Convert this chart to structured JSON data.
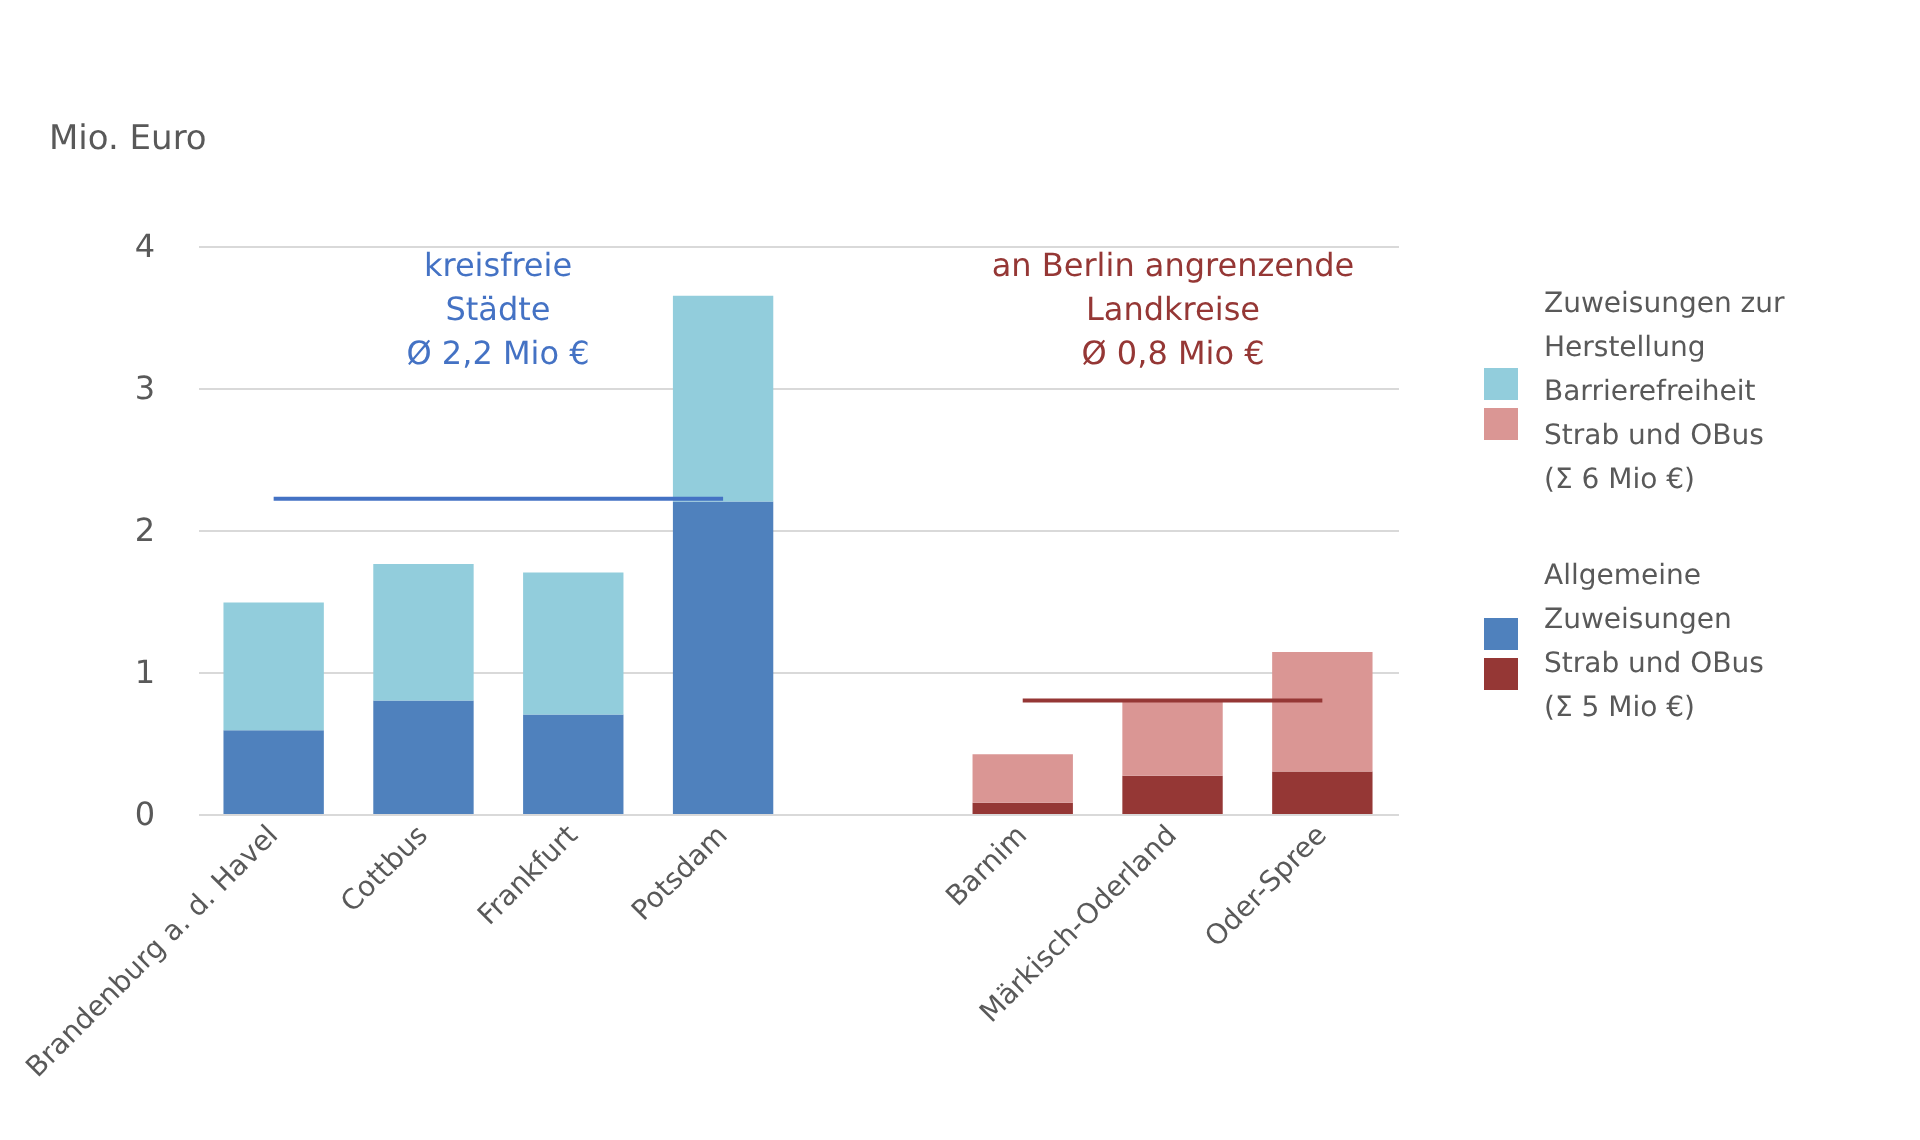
{
  "chart_data": {
    "type": "bar",
    "stacked": true,
    "ylabel": "Mio. Euro",
    "categories": [
      "Brandenburg a. d. Havel",
      "Cottbus",
      "Frankfurt",
      "Potsdam",
      null,
      "Barnim",
      "Märkisch-Oderland",
      "Oder-Spree"
    ],
    "series": [
      {
        "name": "Allgemeine Zuweisungen Strab und OBus (Σ 5 Mio €)",
        "colors": [
          "#4f81bd",
          "#4f81bd",
          "#4f81bd",
          "#4f81bd",
          "#4f81bd",
          "#953735",
          "#953735",
          "#953735"
        ],
        "values": [
          0.59,
          0.8,
          0.7,
          2.2,
          null,
          0.08,
          0.27,
          0.3
        ]
      },
      {
        "name": "Zuweisungen zur Herstellung Barrierefreiheit Strab und OBus (Σ 6 Mio €)",
        "colors": [
          "#92cddc",
          "#92cddc",
          "#92cddc",
          "#92cddc",
          "#92cddc",
          "#da9694",
          "#da9694",
          "#da9694"
        ],
        "values": [
          0.9,
          0.96,
          1.0,
          1.45,
          null,
          0.34,
          0.53,
          0.84
        ]
      },
      {
        "type": "line",
        "color": "#4472c4",
        "values": [
          2.22,
          2.22,
          2.22,
          2.22,
          null,
          null,
          null,
          null
        ]
      },
      {
        "type": "line",
        "color": "#953735",
        "values": [
          null,
          null,
          null,
          null,
          null,
          0.8,
          0.8,
          0.8
        ]
      }
    ],
    "annotations": [
      "kreisfreie\nStädte\nØ 2,2 Mio  €",
      "an Berlin angrenzende\nLandkreise\nØ 0,8 Mio €"
    ],
    "ylim": [
      0,
      4
    ],
    "yticks": [
      0,
      1,
      2,
      3,
      4
    ],
    "grid": "y",
    "legend": "right"
  }
}
